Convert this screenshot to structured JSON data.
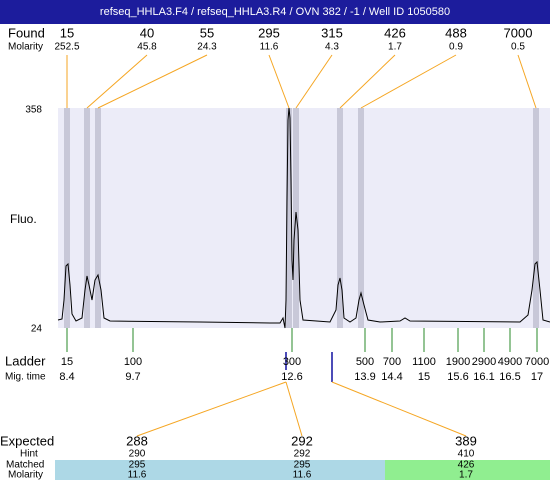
{
  "title": "refseq_HHLA3.F4 / refseq_HHLA3.R4 / OVN 382 / -1 / Well ID 1050580",
  "found": {
    "label": "Found",
    "sizes": [
      15,
      40,
      55,
      295,
      315,
      426,
      488,
      7000
    ],
    "molarity_label": "Molarity",
    "molarity": [
      252.5,
      45.8,
      24.3,
      11.6,
      4.3,
      1.7,
      0.9,
      0.5
    ]
  },
  "plot": {
    "y_label": "Fluo.",
    "y_max": 358,
    "y_min": 24
  },
  "ladder": {
    "label": "Ladder",
    "sizes": [
      15,
      100,
      300,
      500,
      700,
      1100,
      1900,
      2900,
      4900,
      7000
    ],
    "mig_time_label": "Mig. time",
    "mig_times": [
      8.4,
      9.7,
      12.6,
      13.9,
      14.4,
      15,
      15.6,
      16.1,
      16.5,
      17
    ]
  },
  "expected": {
    "labels": [
      "Expected",
      "Hint",
      "Matched",
      "Molarity"
    ],
    "columns": [
      {
        "expected": 288,
        "hint": 290,
        "matched": 295,
        "molarity": 11.6
      },
      {
        "expected": 292,
        "hint": 292,
        "matched": 295,
        "molarity": 11.6
      },
      {
        "expected": 389,
        "hint": 410,
        "matched": 426,
        "molarity": 1.7
      }
    ]
  }
}
